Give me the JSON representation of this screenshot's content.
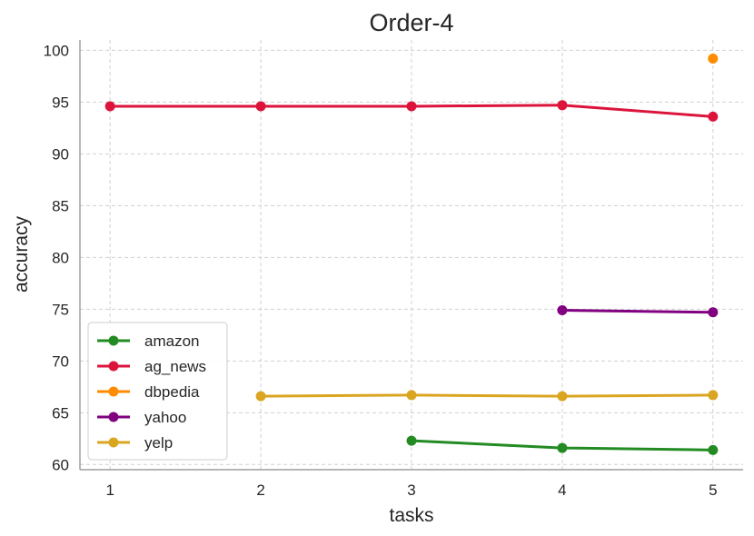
{
  "chart_data": {
    "type": "line",
    "title": "Order-4",
    "xlabel": "tasks",
    "ylabel": "accuracy",
    "x": [
      1,
      2,
      3,
      4,
      5
    ],
    "xlim": [
      0.8,
      5.2
    ],
    "ylim": [
      59.5,
      101
    ],
    "yticks": [
      60,
      65,
      70,
      75,
      80,
      85,
      90,
      95,
      100
    ],
    "grid": true,
    "legend_position": "lower-left",
    "series": [
      {
        "name": "amazon",
        "color": "#228B22",
        "x": [
          3,
          4,
          5
        ],
        "values": [
          62.3,
          61.6,
          61.4
        ]
      },
      {
        "name": "ag_news",
        "color": "#DC143C",
        "x": [
          1,
          2,
          3,
          4,
          5
        ],
        "values": [
          94.6,
          94.6,
          94.6,
          94.7,
          93.6
        ]
      },
      {
        "name": "dbpedia",
        "color": "#FF8C00",
        "x": [
          5
        ],
        "values": [
          99.2
        ]
      },
      {
        "name": "yahoo",
        "color": "#800080",
        "x": [
          4,
          5
        ],
        "values": [
          74.9,
          74.7
        ]
      },
      {
        "name": "yelp",
        "color": "#DAA520",
        "x": [
          2,
          3,
          4,
          5
        ],
        "values": [
          66.6,
          66.7,
          66.6,
          66.7
        ]
      }
    ]
  }
}
